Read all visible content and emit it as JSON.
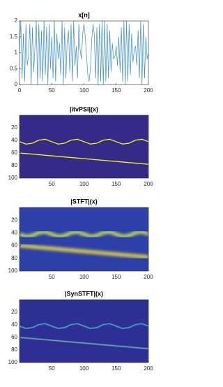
{
  "chart_data": [
    {
      "type": "line",
      "title": "x[n]",
      "x": [
        0,
        2,
        4,
        6,
        8,
        10,
        12,
        14,
        16,
        18,
        20,
        22,
        24,
        26,
        28,
        30,
        32,
        34,
        36,
        38,
        40,
        42,
        44,
        46,
        48,
        50,
        52,
        54,
        56,
        58,
        60,
        62,
        64,
        66,
        68,
        70,
        72,
        74,
        76,
        78,
        80,
        82,
        84,
        86,
        88,
        90,
        92,
        94,
        96,
        98,
        100,
        102,
        104,
        106,
        108,
        110,
        112,
        114,
        116,
        118,
        120,
        122,
        124,
        126,
        128,
        130,
        132,
        134,
        136,
        138,
        140,
        142,
        144,
        146,
        148,
        150,
        152,
        154,
        156,
        158,
        160,
        162,
        164,
        166,
        168,
        170,
        172,
        174,
        176,
        178,
        180,
        182,
        184,
        186,
        188,
        190,
        192,
        194,
        196,
        198,
        200
      ],
      "series": [
        {
          "color": "#3f8fc4",
          "values": [
            1,
            2,
            0.2,
            1.6,
            0.1,
            1.9,
            0.6,
            0.9,
            1.9,
            0,
            1.8,
            0.4,
            1.2,
            2,
            0,
            1.9,
            0.2,
            1.7,
            0.1,
            2,
            0.3,
            1.8,
            0,
            1.9,
            0.5,
            1.5,
            0.2,
            2,
            0.1,
            1.6,
            0.8,
            1.3,
            0.3,
            2,
            0,
            1.8,
            0.2,
            1.4,
            1.7,
            0.4,
            1.9,
            0.1,
            2,
            0.6,
            1.2,
            0.2,
            1.9,
            1.1,
            0.8,
            1.6,
            1.9,
            1.5,
            0.9,
            0.3,
            0.1,
            0.5,
            1.4,
            1.9,
            1.6,
            0.2,
            1.8,
            0,
            1.9,
            0.1,
            2,
            0,
            2,
            0.1,
            1.9,
            0.2,
            1.7,
            0.4,
            1.3,
            0.8,
            0.9,
            1.2,
            0.6,
            1.5,
            0.4,
            1.8,
            0.1,
            2,
            0,
            2,
            0.1,
            1.9,
            0.3,
            1.6,
            0.7,
            1.1,
            1.2,
            0.6,
            1.7,
            0.2,
            2,
            0,
            1.9,
            0.2,
            1.5,
            0.8,
            1
          ]
        }
      ],
      "xlim": [
        0,
        200
      ],
      "ylim": [
        0,
        2
      ],
      "xticks": [
        0,
        50,
        100,
        150,
        200
      ],
      "yticks": [
        0,
        0.5,
        1,
        1.5,
        2
      ]
    },
    {
      "type": "line",
      "title": "|itvPSI|(x)",
      "background": "#352a87",
      "x": [
        0,
        10,
        20,
        30,
        40,
        50,
        60,
        70,
        80,
        90,
        100,
        110,
        120,
        130,
        140,
        150,
        160,
        170,
        180,
        190,
        200
      ],
      "series": [
        {
          "color": "#f9fb0e",
          "values": [
            42,
            45.8,
            44.4,
            39.6,
            38.2,
            42,
            45.8,
            44.4,
            39.6,
            38.2,
            42,
            45.8,
            44.4,
            39.6,
            38.2,
            42,
            45.8,
            44.4,
            39.6,
            38.2,
            42
          ]
        },
        {
          "color": "#f9fb0e",
          "values": [
            60,
            60.9,
            61.8,
            62.7,
            63.6,
            64.5,
            65.4,
            66.3,
            67.2,
            68.1,
            69,
            69.9,
            70.8,
            71.7,
            72.6,
            73.5,
            74.4,
            75.3,
            76.2,
            77.1,
            78
          ]
        }
      ],
      "xlim": [
        0,
        200
      ],
      "ylim": [
        100,
        0
      ],
      "xticks": [
        50,
        100,
        150,
        200
      ],
      "yticks": [
        20,
        40,
        60,
        80,
        100
      ]
    },
    {
      "type": "line",
      "title": "|STFT|(x)",
      "background": "#2d3fa8",
      "x": [
        0,
        10,
        20,
        30,
        40,
        50,
        60,
        70,
        80,
        90,
        100,
        110,
        120,
        130,
        140,
        150,
        160,
        170,
        180,
        190,
        200
      ],
      "series": [
        {
          "color": "#c8e04a",
          "values": [
            42,
            45.8,
            44.4,
            39.6,
            38.2,
            42,
            45.8,
            44.4,
            39.6,
            38.2,
            42,
            45.8,
            44.4,
            39.6,
            38.2,
            42,
            45.8,
            44.4,
            39.6,
            38.2,
            42
          ]
        },
        {
          "color": "#e8d83a",
          "values": [
            60,
            60.9,
            61.8,
            62.7,
            63.6,
            64.5,
            65.4,
            66.3,
            67.2,
            68.1,
            69,
            69.9,
            70.8,
            71.7,
            72.6,
            73.5,
            74.4,
            75.3,
            76.2,
            77.1,
            78
          ]
        }
      ],
      "xlim": [
        0,
        200
      ],
      "ylim": [
        100,
        0
      ],
      "xticks": [
        50,
        100,
        150,
        200
      ],
      "yticks": [
        20,
        40,
        60,
        80,
        100
      ]
    },
    {
      "type": "line",
      "title": "|SynSTFT|(x)",
      "background": "#2e2f95",
      "x": [
        0,
        10,
        20,
        30,
        40,
        50,
        60,
        70,
        80,
        90,
        100,
        110,
        120,
        130,
        140,
        150,
        160,
        170,
        180,
        190,
        200
      ],
      "series": [
        {
          "color": "#5fe0d0",
          "values": [
            42,
            45.8,
            44.4,
            39.6,
            38.2,
            42,
            45.8,
            44.4,
            39.6,
            38.2,
            42,
            45.8,
            44.4,
            39.6,
            38.2,
            42,
            45.8,
            44.4,
            39.6,
            38.2,
            42
          ]
        },
        {
          "color": "#8ef0b0",
          "values": [
            60,
            60.9,
            61.8,
            62.7,
            63.6,
            64.5,
            65.4,
            66.3,
            67.2,
            68.1,
            69,
            69.9,
            70.8,
            71.7,
            72.6,
            73.5,
            74.4,
            75.3,
            76.2,
            77.1,
            78
          ]
        }
      ],
      "xlim": [
        0,
        200
      ],
      "ylim": [
        100,
        0
      ],
      "xticks": [
        50,
        100,
        150,
        200
      ],
      "yticks": [
        20,
        40,
        60,
        80,
        100
      ]
    }
  ]
}
